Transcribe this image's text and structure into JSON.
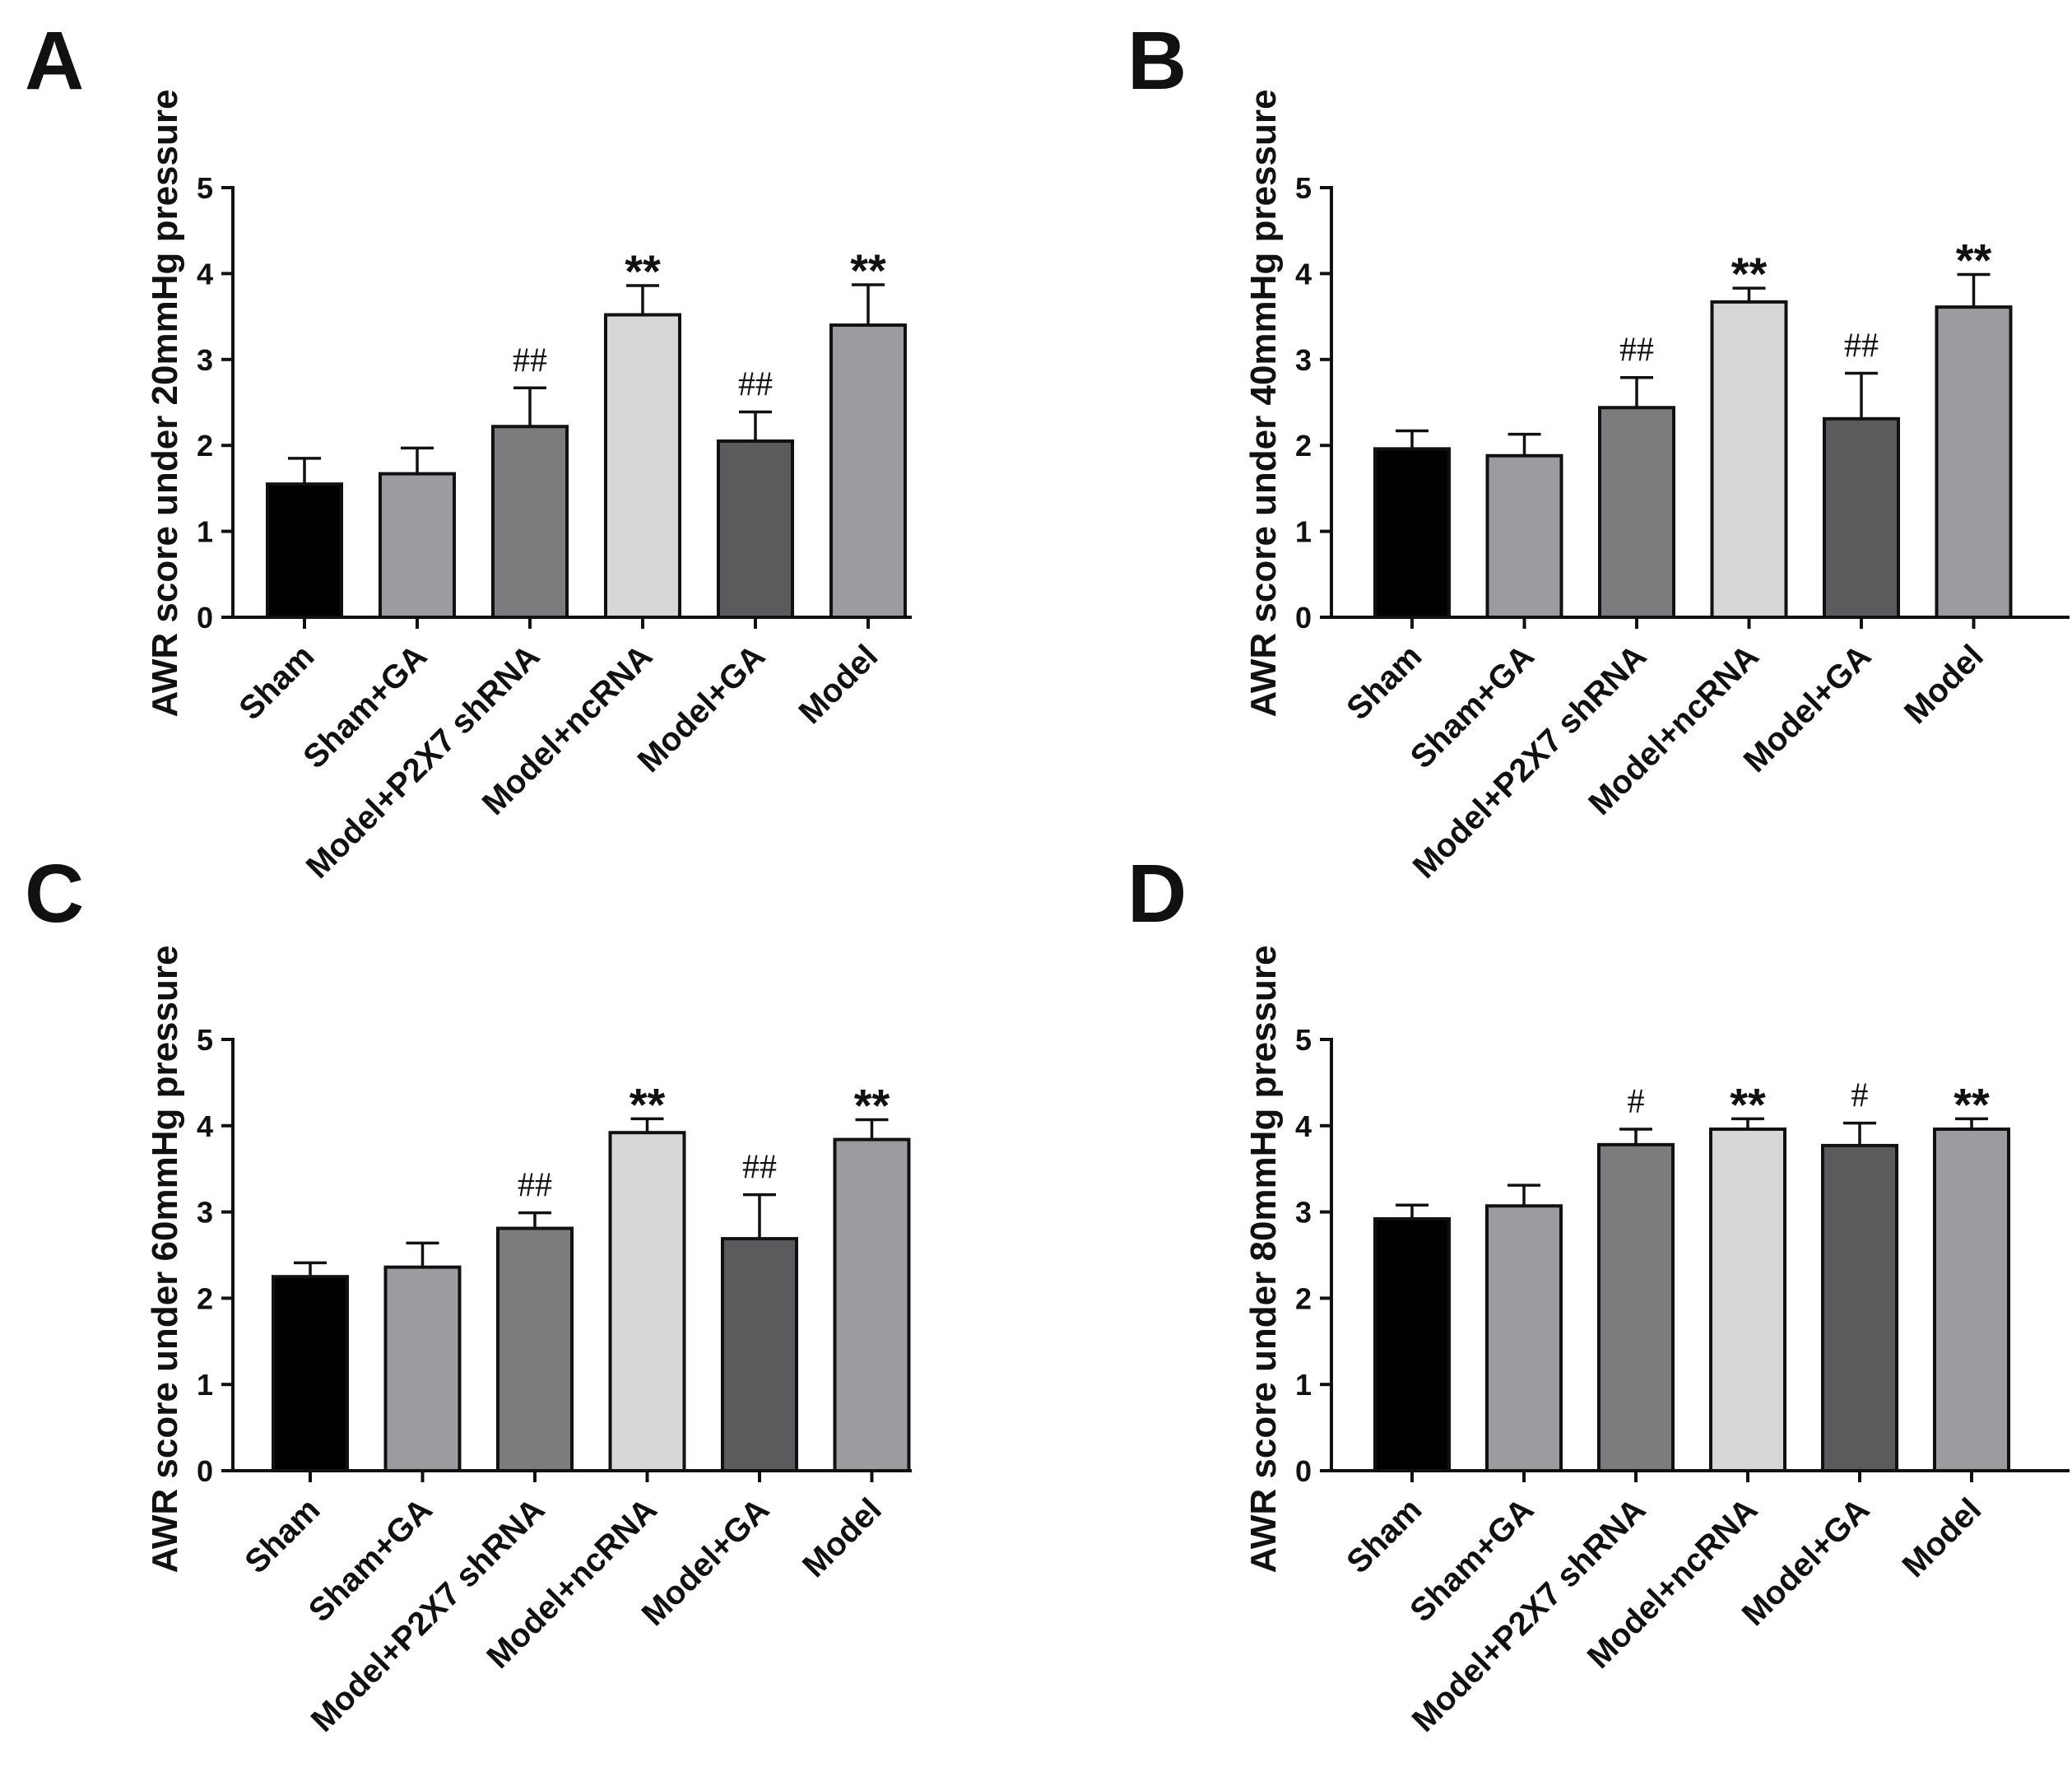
{
  "chart_data": [
    {
      "panel": "A",
      "type": "bar",
      "ylabel": "AWR score under 20mmHg pressure",
      "ylim": [
        0,
        5
      ],
      "yticks": [
        "0",
        "1",
        "2",
        "3",
        "4",
        "5"
      ],
      "categories": [
        "Sham",
        "Sham+GA",
        "Model+P2X7 shRNA",
        "Model+ncRNA",
        "Model+GA",
        "Model"
      ],
      "values": [
        1.55,
        1.67,
        2.22,
        3.52,
        2.05,
        3.4
      ],
      "errors": [
        0.3,
        0.3,
        0.45,
        0.34,
        0.34,
        0.47
      ],
      "significance": [
        "",
        "",
        "##",
        "**",
        "##",
        "**"
      ],
      "colors": [
        "#000000",
        "#9c9ca0",
        "#7c7c7f",
        "#d7d7d7",
        "#5b5b5e",
        "#9c9ca0"
      ]
    },
    {
      "panel": "B",
      "type": "bar",
      "ylabel": "AWR score under 40mmHg pressure",
      "ylim": [
        0,
        5
      ],
      "yticks": [
        "0",
        "1",
        "2",
        "3",
        "4",
        "5"
      ],
      "categories": [
        "Sham",
        "Sham+GA",
        "Model+P2X7 shRNA",
        "Model+ncRNA",
        "Model+GA",
        "Model"
      ],
      "values": [
        1.96,
        1.88,
        2.44,
        3.67,
        2.31,
        3.61
      ],
      "errors": [
        0.21,
        0.25,
        0.35,
        0.16,
        0.53,
        0.38
      ],
      "significance": [
        "",
        "",
        "##",
        "**",
        "##",
        "**"
      ],
      "colors": [
        "#000000",
        "#9c9ca0",
        "#7c7c7f",
        "#d7d7d7",
        "#5b5b5e",
        "#9c9ca0"
      ]
    },
    {
      "panel": "C",
      "type": "bar",
      "ylabel": "AWR score under 60mmHg pressure",
      "ylim": [
        0,
        5
      ],
      "yticks": [
        "0",
        "1",
        "2",
        "3",
        "4",
        "5"
      ],
      "categories": [
        "Sham",
        "Sham+GA",
        "Model+P2X7 shRNA",
        "Model+ncRNA",
        "Model+GA",
        "Model"
      ],
      "values": [
        2.25,
        2.36,
        2.81,
        3.92,
        2.69,
        3.84
      ],
      "errors": [
        0.16,
        0.28,
        0.18,
        0.16,
        0.51,
        0.23
      ],
      "significance": [
        "",
        "",
        "##",
        "**",
        "##",
        "**"
      ],
      "colors": [
        "#000000",
        "#9c9ca0",
        "#7c7c7f",
        "#d7d7d7",
        "#5b5b5e",
        "#9c9ca0"
      ]
    },
    {
      "panel": "D",
      "type": "bar",
      "ylabel": "AWR score under 80mmHg pressure",
      "ylim": [
        0,
        5
      ],
      "yticks": [
        "0",
        "1",
        "2",
        "3",
        "4",
        "5"
      ],
      "categories": [
        "Sham",
        "Sham+GA",
        "Model+P2X7 shRNA",
        "Model+ncRNA",
        "Model+GA",
        "Model"
      ],
      "values": [
        2.92,
        3.07,
        3.78,
        3.96,
        3.77,
        3.96
      ],
      "errors": [
        0.16,
        0.24,
        0.18,
        0.12,
        0.26,
        0.12
      ],
      "significance": [
        "",
        "",
        "#",
        "**",
        "#",
        "**"
      ],
      "colors": [
        "#000000",
        "#9c9ca0",
        "#7c7c7f",
        "#d7d7d7",
        "#5b5b5e",
        "#9c9ca0"
      ]
    }
  ]
}
